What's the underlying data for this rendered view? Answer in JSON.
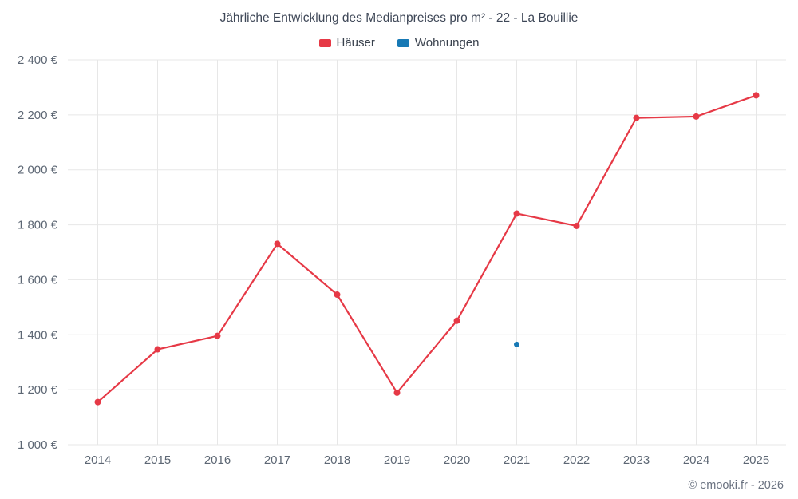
{
  "chart_data": {
    "type": "line",
    "title": "Jährliche Entwicklung des Medianpreises pro m² - 22 - La Bouillie",
    "categories": [
      2014,
      2015,
      2016,
      2017,
      2018,
      2019,
      2020,
      2021,
      2022,
      2023,
      2024,
      2025
    ],
    "series": [
      {
        "name": "Häuser",
        "color": "#e63946",
        "style": "line-with-markers",
        "values": [
          1155,
          1347,
          1396,
          1731,
          1546,
          1189,
          1451,
          1841,
          1796,
          2189,
          2194,
          2271
        ]
      },
      {
        "name": "Wohnungen",
        "color": "#1779b5",
        "style": "markers-only",
        "points": [
          {
            "x": 2021,
            "y": 1365
          }
        ]
      }
    ],
    "ylim": [
      1000,
      2400
    ],
    "yticks": [
      1000,
      1200,
      1400,
      1600,
      1800,
      2000,
      2200,
      2400
    ],
    "ytick_labels": [
      "1 000 €",
      "1 200 €",
      "1 400 €",
      "1 600 €",
      "1 800 €",
      "2 000 €",
      "2 200 €",
      "2 400 €"
    ],
    "grid": true,
    "legend_position": "top"
  },
  "footer": {
    "copyright": "© emooki.fr - 2026"
  }
}
